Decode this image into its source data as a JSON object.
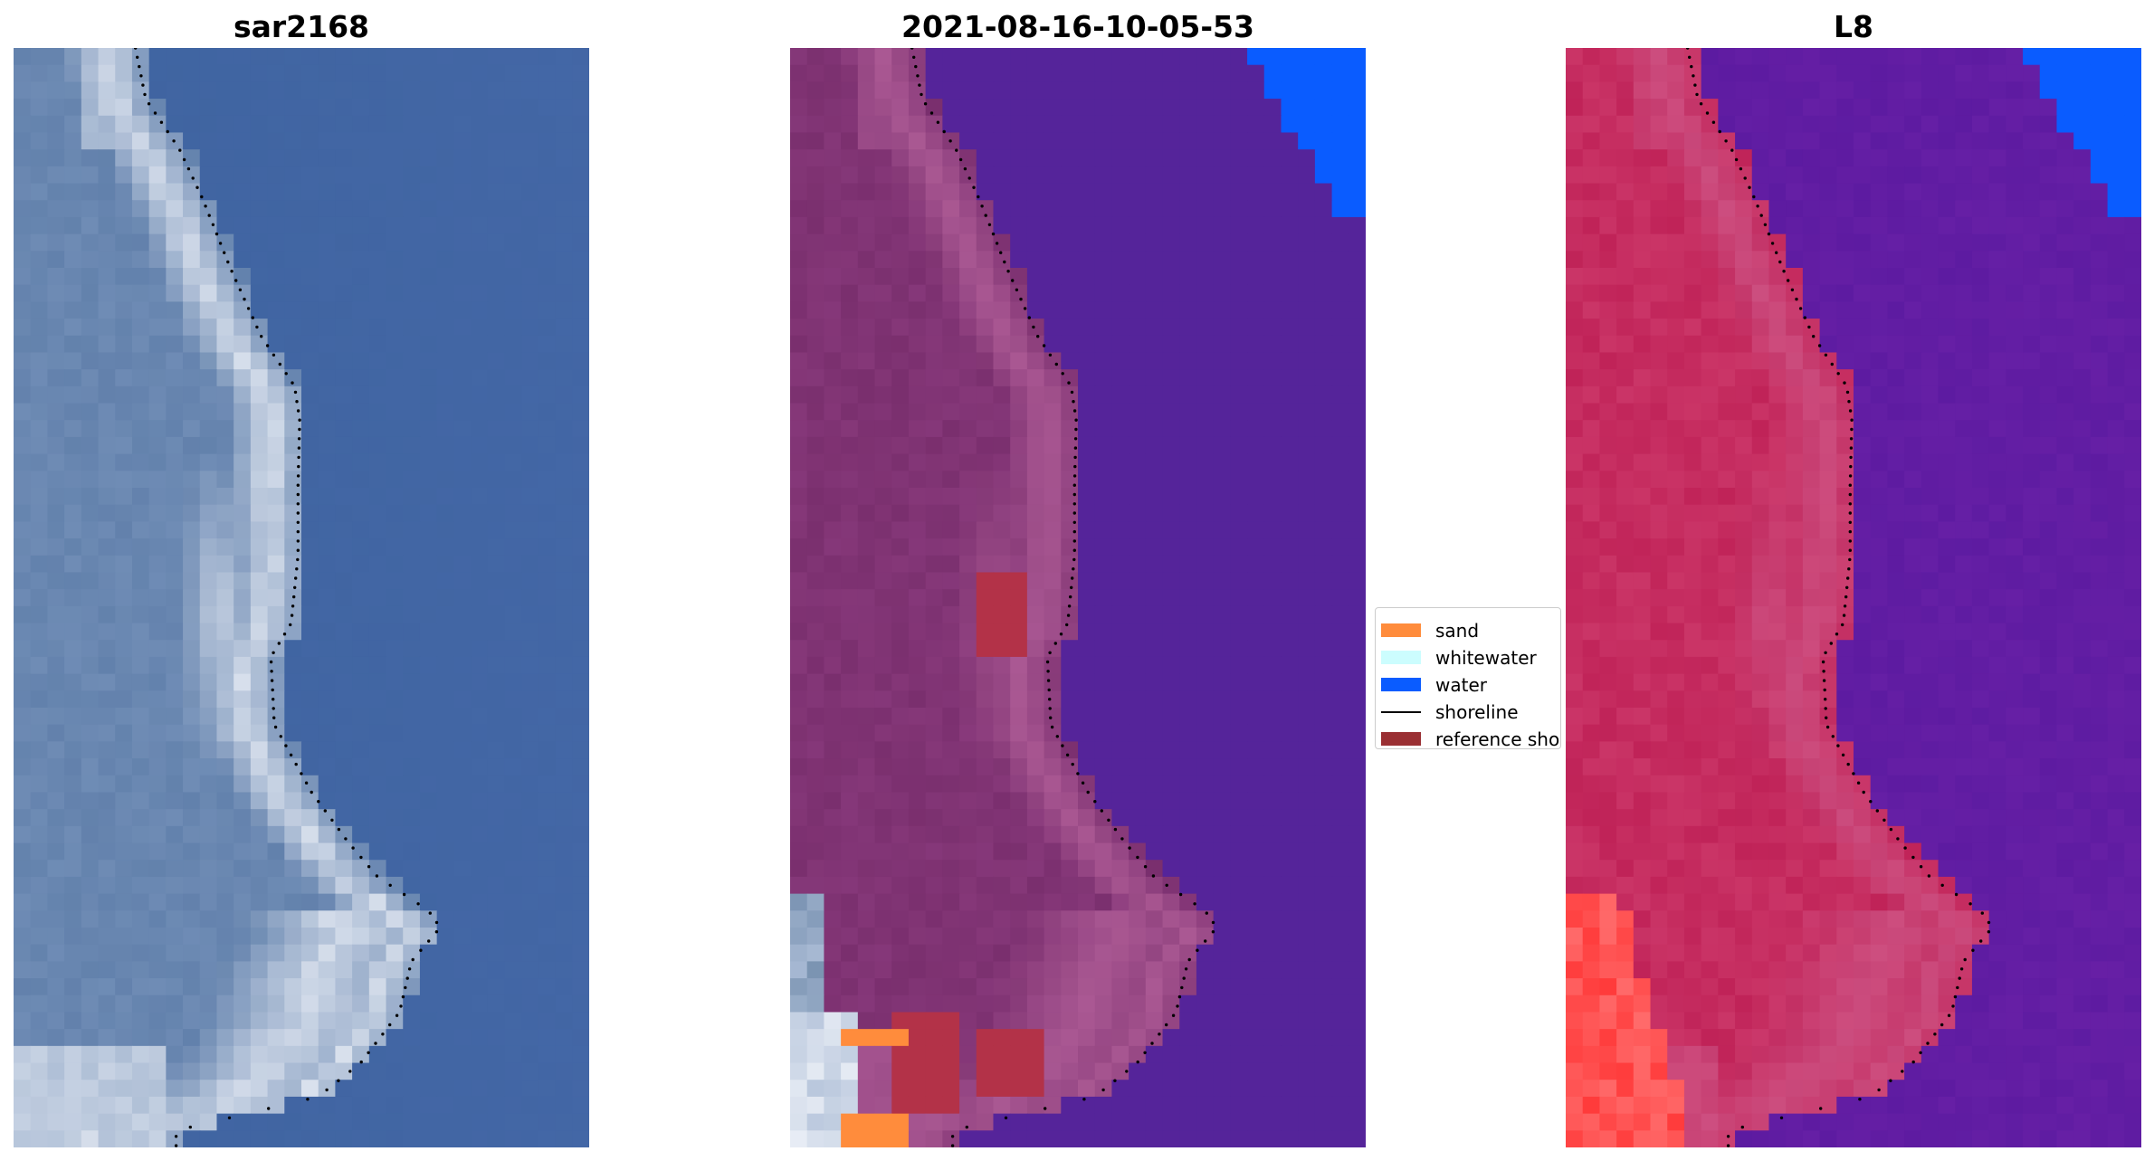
{
  "panels": [
    {
      "title": "sar2168",
      "image": "rgb satellite image of coastline",
      "scheme": "rgb"
    },
    {
      "title": "2021-08-16-10-05-53",
      "image": "classified coastline overlay",
      "scheme": "classified"
    },
    {
      "title": "L8",
      "image": "false colour image of coastline",
      "scheme": "falsecolor"
    }
  ],
  "legend": {
    "items": [
      {
        "label": "sand",
        "color": "#ff8c3c",
        "kind": "patch"
      },
      {
        "label": "whitewater",
        "color": "#ccfdfe",
        "kind": "patch"
      },
      {
        "label": "water",
        "color": "#0a5cff",
        "kind": "patch"
      },
      {
        "label": "shoreline",
        "color": "#000000",
        "kind": "line"
      },
      {
        "label": "reference shoreline",
        "color": "#9a2f33",
        "kind": "patch"
      }
    ]
  },
  "colors": {
    "sar_water": "#3f64a0",
    "sar_land": "#6f8cb5",
    "sar_surf": "#dde4ef",
    "class_water": "#55249a",
    "class_land": "#7a2f6e",
    "class_reference": "#b33248",
    "fc_water": "#5b1aa0",
    "fc_land": "#c02358",
    "fc_red": "#ff3a3a",
    "corner_water": "#0a5cff"
  }
}
